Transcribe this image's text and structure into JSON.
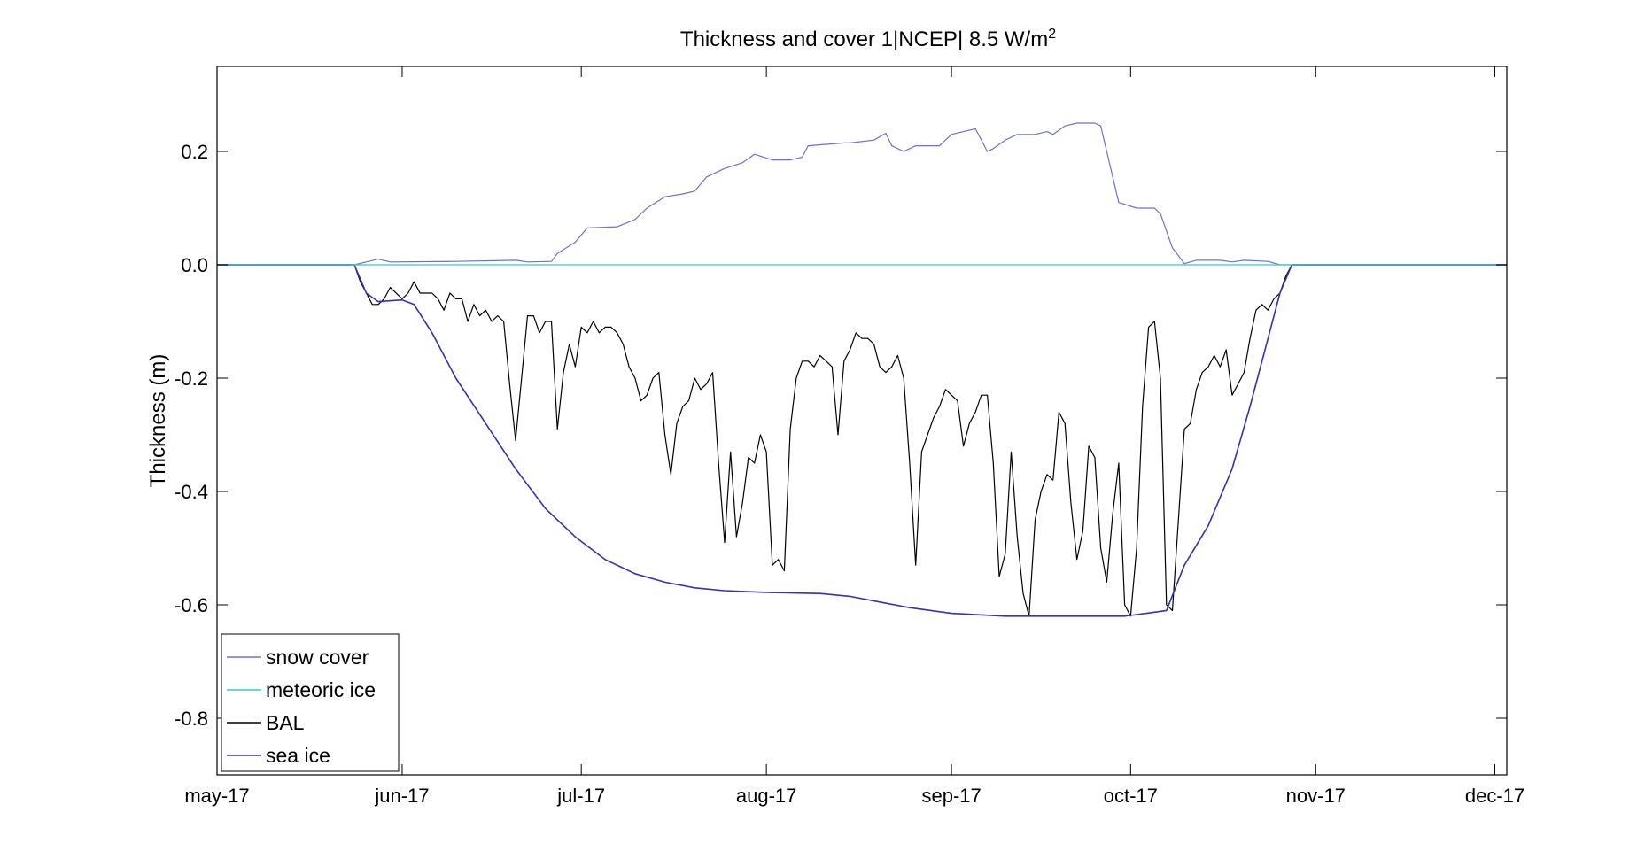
{
  "chart_data": {
    "type": "line",
    "title": "Thickness and cover 1|NCEP| 8.5 W/m",
    "title_superscript": "2",
    "xlabel": "",
    "ylabel": "Thickness (m)",
    "ylim": [
      -0.9,
      0.35
    ],
    "xlim": [
      "2017-05-01",
      "2017-12-03"
    ],
    "y_ticks": [
      0.2,
      0.0,
      -0.2,
      -0.4,
      -0.6,
      -0.8
    ],
    "y_tick_labels": [
      "0.2",
      "0.0",
      "-0.2",
      "-0.4",
      "-0.6",
      "-0.8"
    ],
    "x_ticks": [
      "2017-05-01",
      "2017-06-01",
      "2017-07-01",
      "2017-08-01",
      "2017-09-01",
      "2017-10-01",
      "2017-11-01",
      "2017-12-01"
    ],
    "x_tick_labels": [
      "may-17",
      "jun-17",
      "jul-17",
      "aug-17",
      "sep-17",
      "oct-17",
      "nov-17",
      "dec-17"
    ],
    "grid": false,
    "legend_position": "bottom-left",
    "series": [
      {
        "name": "snow cover",
        "color": "#7070c8",
        "points": [
          [
            "2017-05-01",
            0
          ],
          [
            "2017-05-24",
            0
          ],
          [
            "2017-05-26",
            0.005
          ],
          [
            "2017-05-28",
            0.01
          ],
          [
            "2017-05-30",
            0.005
          ],
          [
            "2017-06-10",
            0.006
          ],
          [
            "2017-06-20",
            0.008
          ],
          [
            "2017-06-22",
            0.005
          ],
          [
            "2017-06-26",
            0.006
          ],
          [
            "2017-06-27",
            0.02
          ],
          [
            "2017-06-30",
            0.04
          ],
          [
            "2017-07-02",
            0.065
          ],
          [
            "2017-07-07",
            0.067
          ],
          [
            "2017-07-10",
            0.08
          ],
          [
            "2017-07-12",
            0.1
          ],
          [
            "2017-07-15",
            0.12
          ],
          [
            "2017-07-18",
            0.125
          ],
          [
            "2017-07-20",
            0.13
          ],
          [
            "2017-07-22",
            0.155
          ],
          [
            "2017-07-25",
            0.17
          ],
          [
            "2017-07-28",
            0.18
          ],
          [
            "2017-07-30",
            0.195
          ],
          [
            "2017-08-02",
            0.185
          ],
          [
            "2017-08-05",
            0.185
          ],
          [
            "2017-08-07",
            0.19
          ],
          [
            "2017-08-08",
            0.21
          ],
          [
            "2017-08-14",
            0.215
          ],
          [
            "2017-08-15",
            0.215
          ],
          [
            "2017-08-19",
            0.22
          ],
          [
            "2017-08-21",
            0.232
          ],
          [
            "2017-08-22",
            0.21
          ],
          [
            "2017-08-24",
            0.2
          ],
          [
            "2017-08-26",
            0.21
          ],
          [
            "2017-08-30",
            0.21
          ],
          [
            "2017-09-01",
            0.23
          ],
          [
            "2017-09-03",
            0.235
          ],
          [
            "2017-09-05",
            0.24
          ],
          [
            "2017-09-07",
            0.2
          ],
          [
            "2017-09-08",
            0.205
          ],
          [
            "2017-09-10",
            0.22
          ],
          [
            "2017-09-12",
            0.23
          ],
          [
            "2017-09-15",
            0.23
          ],
          [
            "2017-09-17",
            0.235
          ],
          [
            "2017-09-18",
            0.23
          ],
          [
            "2017-09-20",
            0.245
          ],
          [
            "2017-09-22",
            0.25
          ],
          [
            "2017-09-25",
            0.25
          ],
          [
            "2017-09-26",
            0.245
          ],
          [
            "2017-09-29",
            0.11
          ],
          [
            "2017-10-02",
            0.1
          ],
          [
            "2017-10-05",
            0.1
          ],
          [
            "2017-10-06",
            0.09
          ],
          [
            "2017-10-08",
            0.03
          ],
          [
            "2017-10-10",
            0.002
          ],
          [
            "2017-10-12",
            0.008
          ],
          [
            "2017-10-16",
            0.008
          ],
          [
            "2017-10-18",
            0.005
          ],
          [
            "2017-10-20",
            0.008
          ],
          [
            "2017-10-24",
            0.006
          ],
          [
            "2017-10-26",
            0
          ],
          [
            "2017-12-03",
            0
          ]
        ]
      },
      {
        "name": "meteoric ice",
        "color": "#33cccc",
        "points": [
          [
            "2017-05-01",
            0
          ],
          [
            "2017-12-03",
            0
          ]
        ]
      },
      {
        "name": "BAL",
        "color": "#000000",
        "points": [
          [
            "2017-05-01",
            0
          ],
          [
            "2017-05-24",
            0
          ],
          [
            "2017-05-25",
            -0.03
          ],
          [
            "2017-05-27",
            -0.07
          ],
          [
            "2017-05-28",
            -0.07
          ],
          [
            "2017-05-29",
            -0.06
          ],
          [
            "2017-05-30",
            -0.04
          ],
          [
            "2017-06-01",
            -0.06
          ],
          [
            "2017-06-02",
            -0.05
          ],
          [
            "2017-06-03",
            -0.03
          ],
          [
            "2017-06-04",
            -0.05
          ],
          [
            "2017-06-06",
            -0.05
          ],
          [
            "2017-06-07",
            -0.06
          ],
          [
            "2017-06-08",
            -0.08
          ],
          [
            "2017-06-09",
            -0.05
          ],
          [
            "2017-06-10",
            -0.06
          ],
          [
            "2017-06-11",
            -0.06
          ],
          [
            "2017-06-12",
            -0.1
          ],
          [
            "2017-06-13",
            -0.07
          ],
          [
            "2017-06-14",
            -0.09
          ],
          [
            "2017-06-15",
            -0.08
          ],
          [
            "2017-06-16",
            -0.1
          ],
          [
            "2017-06-17",
            -0.09
          ],
          [
            "2017-06-18",
            -0.1
          ],
          [
            "2017-06-19",
            -0.21
          ],
          [
            "2017-06-20",
            -0.31
          ],
          [
            "2017-06-21",
            -0.2
          ],
          [
            "2017-06-22",
            -0.09
          ],
          [
            "2017-06-23",
            -0.09
          ],
          [
            "2017-06-24",
            -0.12
          ],
          [
            "2017-06-25",
            -0.1
          ],
          [
            "2017-06-26",
            -0.1
          ],
          [
            "2017-06-27",
            -0.29
          ],
          [
            "2017-06-28",
            -0.19
          ],
          [
            "2017-06-29",
            -0.14
          ],
          [
            "2017-06-30",
            -0.18
          ],
          [
            "2017-07-01",
            -0.11
          ],
          [
            "2017-07-02",
            -0.12
          ],
          [
            "2017-07-03",
            -0.1
          ],
          [
            "2017-07-04",
            -0.12
          ],
          [
            "2017-07-05",
            -0.11
          ],
          [
            "2017-07-06",
            -0.11
          ],
          [
            "2017-07-07",
            -0.12
          ],
          [
            "2017-07-08",
            -0.14
          ],
          [
            "2017-07-09",
            -0.18
          ],
          [
            "2017-07-10",
            -0.2
          ],
          [
            "2017-07-11",
            -0.24
          ],
          [
            "2017-07-12",
            -0.23
          ],
          [
            "2017-07-13",
            -0.2
          ],
          [
            "2017-07-14",
            -0.19
          ],
          [
            "2017-07-15",
            -0.3
          ],
          [
            "2017-07-16",
            -0.37
          ],
          [
            "2017-07-17",
            -0.28
          ],
          [
            "2017-07-18",
            -0.25
          ],
          [
            "2017-07-19",
            -0.24
          ],
          [
            "2017-07-20",
            -0.2
          ],
          [
            "2017-07-21",
            -0.22
          ],
          [
            "2017-07-22",
            -0.21
          ],
          [
            "2017-07-23",
            -0.19
          ],
          [
            "2017-07-24",
            -0.35
          ],
          [
            "2017-07-25",
            -0.49
          ],
          [
            "2017-07-26",
            -0.33
          ],
          [
            "2017-07-27",
            -0.48
          ],
          [
            "2017-07-28",
            -0.42
          ],
          [
            "2017-07-29",
            -0.34
          ],
          [
            "2017-07-30",
            -0.35
          ],
          [
            "2017-07-31",
            -0.3
          ],
          [
            "2017-08-01",
            -0.33
          ],
          [
            "2017-08-02",
            -0.53
          ],
          [
            "2017-08-03",
            -0.52
          ],
          [
            "2017-08-04",
            -0.54
          ],
          [
            "2017-08-05",
            -0.29
          ],
          [
            "2017-08-06",
            -0.2
          ],
          [
            "2017-08-07",
            -0.17
          ],
          [
            "2017-08-08",
            -0.17
          ],
          [
            "2017-08-09",
            -0.18
          ],
          [
            "2017-08-10",
            -0.16
          ],
          [
            "2017-08-11",
            -0.17
          ],
          [
            "2017-08-12",
            -0.18
          ],
          [
            "2017-08-13",
            -0.3
          ],
          [
            "2017-08-14",
            -0.17
          ],
          [
            "2017-08-15",
            -0.15
          ],
          [
            "2017-08-16",
            -0.12
          ],
          [
            "2017-08-17",
            -0.13
          ],
          [
            "2017-08-18",
            -0.13
          ],
          [
            "2017-08-19",
            -0.14
          ],
          [
            "2017-08-20",
            -0.18
          ],
          [
            "2017-08-21",
            -0.19
          ],
          [
            "2017-08-22",
            -0.18
          ],
          [
            "2017-08-23",
            -0.16
          ],
          [
            "2017-08-24",
            -0.2
          ],
          [
            "2017-08-25",
            -0.35
          ],
          [
            "2017-08-26",
            -0.53
          ],
          [
            "2017-08-27",
            -0.33
          ],
          [
            "2017-08-28",
            -0.3
          ],
          [
            "2017-08-29",
            -0.27
          ],
          [
            "2017-08-30",
            -0.25
          ],
          [
            "2017-08-31",
            -0.22
          ],
          [
            "2017-09-01",
            -0.23
          ],
          [
            "2017-09-02",
            -0.24
          ],
          [
            "2017-09-03",
            -0.32
          ],
          [
            "2017-09-04",
            -0.28
          ],
          [
            "2017-09-05",
            -0.26
          ],
          [
            "2017-09-06",
            -0.23
          ],
          [
            "2017-09-07",
            -0.23
          ],
          [
            "2017-09-08",
            -0.35
          ],
          [
            "2017-09-09",
            -0.55
          ],
          [
            "2017-09-10",
            -0.51
          ],
          [
            "2017-09-11",
            -0.33
          ],
          [
            "2017-09-12",
            -0.48
          ],
          [
            "2017-09-13",
            -0.58
          ],
          [
            "2017-09-14",
            -0.62
          ],
          [
            "2017-09-15",
            -0.45
          ],
          [
            "2017-09-16",
            -0.4
          ],
          [
            "2017-09-17",
            -0.37
          ],
          [
            "2017-09-18",
            -0.38
          ],
          [
            "2017-09-19",
            -0.26
          ],
          [
            "2017-09-20",
            -0.28
          ],
          [
            "2017-09-21",
            -0.42
          ],
          [
            "2017-09-22",
            -0.52
          ],
          [
            "2017-09-23",
            -0.47
          ],
          [
            "2017-09-24",
            -0.32
          ],
          [
            "2017-09-25",
            -0.34
          ],
          [
            "2017-09-26",
            -0.5
          ],
          [
            "2017-09-27",
            -0.56
          ],
          [
            "2017-09-28",
            -0.44
          ],
          [
            "2017-09-29",
            -0.35
          ],
          [
            "2017-09-30",
            -0.6
          ],
          [
            "2017-10-01",
            -0.62
          ],
          [
            "2017-10-02",
            -0.5
          ],
          [
            "2017-10-03",
            -0.25
          ],
          [
            "2017-10-04",
            -0.11
          ],
          [
            "2017-10-05",
            -0.1
          ],
          [
            "2017-10-06",
            -0.2
          ],
          [
            "2017-10-07",
            -0.6
          ],
          [
            "2017-10-08",
            -0.61
          ],
          [
            "2017-10-09",
            -0.45
          ],
          [
            "2017-10-10",
            -0.29
          ],
          [
            "2017-10-11",
            -0.28
          ],
          [
            "2017-10-12",
            -0.22
          ],
          [
            "2017-10-13",
            -0.19
          ],
          [
            "2017-10-14",
            -0.18
          ],
          [
            "2017-10-15",
            -0.16
          ],
          [
            "2017-10-16",
            -0.18
          ],
          [
            "2017-10-17",
            -0.15
          ],
          [
            "2017-10-18",
            -0.23
          ],
          [
            "2017-10-19",
            -0.21
          ],
          [
            "2017-10-20",
            -0.19
          ],
          [
            "2017-10-21",
            -0.13
          ],
          [
            "2017-10-22",
            -0.08
          ],
          [
            "2017-10-23",
            -0.07
          ],
          [
            "2017-10-24",
            -0.08
          ],
          [
            "2017-10-25",
            -0.06
          ],
          [
            "2017-10-26",
            -0.05
          ],
          [
            "2017-10-27",
            -0.02
          ],
          [
            "2017-10-28",
            0
          ],
          [
            "2017-12-03",
            0
          ]
        ]
      },
      {
        "name": "sea ice",
        "color": "#3333aa",
        "points": [
          [
            "2017-05-01",
            0
          ],
          [
            "2017-05-24",
            0
          ],
          [
            "2017-05-26",
            -0.05
          ],
          [
            "2017-05-28",
            -0.065
          ],
          [
            "2017-06-01",
            -0.062
          ],
          [
            "2017-06-03",
            -0.07
          ],
          [
            "2017-06-06",
            -0.12
          ],
          [
            "2017-06-10",
            -0.2
          ],
          [
            "2017-06-15",
            -0.28
          ],
          [
            "2017-06-20",
            -0.36
          ],
          [
            "2017-06-25",
            -0.43
          ],
          [
            "2017-06-30",
            -0.48
          ],
          [
            "2017-07-05",
            -0.52
          ],
          [
            "2017-07-10",
            -0.545
          ],
          [
            "2017-07-15",
            -0.56
          ],
          [
            "2017-07-20",
            -0.57
          ],
          [
            "2017-07-25",
            -0.575
          ],
          [
            "2017-08-01",
            -0.578
          ],
          [
            "2017-08-10",
            -0.58
          ],
          [
            "2017-08-15",
            -0.585
          ],
          [
            "2017-08-20",
            -0.595
          ],
          [
            "2017-08-25",
            -0.605
          ],
          [
            "2017-09-01",
            -0.615
          ],
          [
            "2017-09-10",
            -0.62
          ],
          [
            "2017-09-20",
            -0.62
          ],
          [
            "2017-09-30",
            -0.62
          ],
          [
            "2017-10-05",
            -0.613
          ],
          [
            "2017-10-07",
            -0.61
          ],
          [
            "2017-10-10",
            -0.53
          ],
          [
            "2017-10-14",
            -0.46
          ],
          [
            "2017-10-18",
            -0.36
          ],
          [
            "2017-10-21",
            -0.25
          ],
          [
            "2017-10-24",
            -0.13
          ],
          [
            "2017-10-26",
            -0.05
          ],
          [
            "2017-10-28",
            0
          ],
          [
            "2017-12-03",
            0
          ]
        ]
      }
    ]
  }
}
